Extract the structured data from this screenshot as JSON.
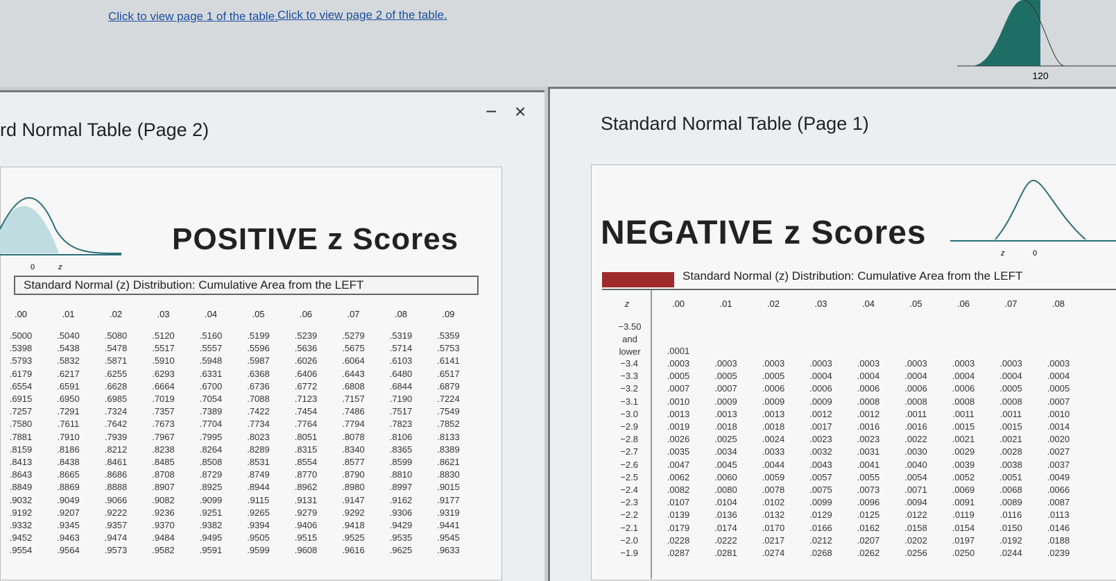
{
  "links": [
    "Click to view page 1 of the table.",
    "Click to view page 2 of the table."
  ],
  "background_label": "120",
  "page2": {
    "title": "rd Normal Table (Page 2)",
    "heading": "POSITIVE z Scores",
    "axis_labels": [
      "0",
      "z"
    ],
    "table": {
      "caption": "Standard Normal (z) Distribution: Cumulative Area from the LEFT",
      "columns": [
        ".00",
        ".01",
        ".02",
        ".03",
        ".04",
        ".05",
        ".06",
        ".07",
        ".08",
        ".09"
      ],
      "rows": [
        [
          ".5000",
          ".5040",
          ".5080",
          ".5120",
          ".5160",
          ".5199",
          ".5239",
          ".5279",
          ".5319",
          ".5359"
        ],
        [
          ".5398",
          ".5438",
          ".5478",
          ".5517",
          ".5557",
          ".5596",
          ".5636",
          ".5675",
          ".5714",
          ".5753"
        ],
        [
          ".5793",
          ".5832",
          ".5871",
          ".5910",
          ".5948",
          ".5987",
          ".6026",
          ".6064",
          ".6103",
          ".6141"
        ],
        [
          ".6179",
          ".6217",
          ".6255",
          ".6293",
          ".6331",
          ".6368",
          ".6406",
          ".6443",
          ".6480",
          ".6517"
        ],
        [
          ".6554",
          ".6591",
          ".6628",
          ".6664",
          ".6700",
          ".6736",
          ".6772",
          ".6808",
          ".6844",
          ".6879"
        ],
        [
          ".6915",
          ".6950",
          ".6985",
          ".7019",
          ".7054",
          ".7088",
          ".7123",
          ".7157",
          ".7190",
          ".7224"
        ],
        [
          ".7257",
          ".7291",
          ".7324",
          ".7357",
          ".7389",
          ".7422",
          ".7454",
          ".7486",
          ".7517",
          ".7549"
        ],
        [
          ".7580",
          ".7611",
          ".7642",
          ".7673",
          ".7704",
          ".7734",
          ".7764",
          ".7794",
          ".7823",
          ".7852"
        ],
        [
          ".7881",
          ".7910",
          ".7939",
          ".7967",
          ".7995",
          ".8023",
          ".8051",
          ".8078",
          ".8106",
          ".8133"
        ],
        [
          ".8159",
          ".8186",
          ".8212",
          ".8238",
          ".8264",
          ".8289",
          ".8315",
          ".8340",
          ".8365",
          ".8389"
        ],
        [
          ".8413",
          ".8438",
          ".8461",
          ".8485",
          ".8508",
          ".8531",
          ".8554",
          ".8577",
          ".8599",
          ".8621"
        ],
        [
          ".8643",
          ".8665",
          ".8686",
          ".8708",
          ".8729",
          ".8749",
          ".8770",
          ".8790",
          ".8810",
          ".8830"
        ],
        [
          ".8849",
          ".8869",
          ".8888",
          ".8907",
          ".8925",
          ".8944",
          ".8962",
          ".8980",
          ".8997",
          ".9015"
        ],
        [
          ".9032",
          ".9049",
          ".9066",
          ".9082",
          ".9099",
          ".9115",
          ".9131",
          ".9147",
          ".9162",
          ".9177"
        ],
        [
          ".9192",
          ".9207",
          ".9222",
          ".9236",
          ".9251",
          ".9265",
          ".9279",
          ".9292",
          ".9306",
          ".9319"
        ],
        [
          ".9332",
          ".9345",
          ".9357",
          ".9370",
          ".9382",
          ".9394",
          ".9406",
          ".9418",
          ".9429",
          ".9441"
        ],
        [
          ".9452",
          ".9463",
          ".9474",
          ".9484",
          ".9495",
          ".9505",
          ".9515",
          ".9525",
          ".9535",
          ".9545"
        ],
        [
          ".9554",
          ".9564",
          ".9573",
          ".9582",
          ".9591",
          ".9599",
          ".9608",
          ".9616",
          ".9625",
          ".9633"
        ]
      ]
    }
  },
  "page1": {
    "title": "Standard Normal Table (Page 1)",
    "heading": "NEGATIVE z Scores",
    "axis_labels": [
      "z",
      "0"
    ],
    "table": {
      "caption": "Standard Normal (z) Distribution: Cumulative Area from the LEFT",
      "z_header": "z",
      "columns": [
        ".00",
        ".01",
        ".02",
        ".03",
        ".04",
        ".05",
        ".06",
        ".07",
        ".08"
      ],
      "rows": [
        {
          "z": "−3.50 and lower",
          "values": [
            ".0001"
          ]
        },
        {
          "z": "−3.4",
          "values": [
            ".0003",
            ".0003",
            ".0003",
            ".0003",
            ".0003",
            ".0003",
            ".0003",
            ".0003",
            ".0003"
          ]
        },
        {
          "z": "−3.3",
          "values": [
            ".0005",
            ".0005",
            ".0005",
            ".0004",
            ".0004",
            ".0004",
            ".0004",
            ".0004",
            ".0004"
          ]
        },
        {
          "z": "−3.2",
          "values": [
            ".0007",
            ".0007",
            ".0006",
            ".0006",
            ".0006",
            ".0006",
            ".0006",
            ".0005",
            ".0005"
          ]
        },
        {
          "z": "−3.1",
          "values": [
            ".0010",
            ".0009",
            ".0009",
            ".0009",
            ".0008",
            ".0008",
            ".0008",
            ".0008",
            ".0007"
          ]
        },
        {
          "z": "−3.0",
          "values": [
            ".0013",
            ".0013",
            ".0013",
            ".0012",
            ".0012",
            ".0011",
            ".0011",
            ".0011",
            ".0010"
          ]
        },
        {
          "z": "−2.9",
          "values": [
            ".0019",
            ".0018",
            ".0018",
            ".0017",
            ".0016",
            ".0016",
            ".0015",
            ".0015",
            ".0014"
          ]
        },
        {
          "z": "−2.8",
          "values": [
            ".0026",
            ".0025",
            ".0024",
            ".0023",
            ".0023",
            ".0022",
            ".0021",
            ".0021",
            ".0020"
          ]
        },
        {
          "z": "−2.7",
          "values": [
            ".0035",
            ".0034",
            ".0033",
            ".0032",
            ".0031",
            ".0030",
            ".0029",
            ".0028",
            ".0027"
          ]
        },
        {
          "z": "−2.6",
          "values": [
            ".0047",
            ".0045",
            ".0044",
            ".0043",
            ".0041",
            ".0040",
            ".0039",
            ".0038",
            ".0037"
          ]
        },
        {
          "z": "−2.5",
          "values": [
            ".0062",
            ".0060",
            ".0059",
            ".0057",
            ".0055",
            ".0054",
            ".0052",
            ".0051",
            ".0049"
          ]
        },
        {
          "z": "−2.4",
          "values": [
            ".0082",
            ".0080",
            ".0078",
            ".0075",
            ".0073",
            ".0071",
            ".0069",
            ".0068",
            ".0066"
          ]
        },
        {
          "z": "−2.3",
          "values": [
            ".0107",
            ".0104",
            ".0102",
            ".0099",
            ".0096",
            ".0094",
            ".0091",
            ".0089",
            ".0087"
          ]
        },
        {
          "z": "−2.2",
          "values": [
            ".0139",
            ".0136",
            ".0132",
            ".0129",
            ".0125",
            ".0122",
            ".0119",
            ".0116",
            ".0113"
          ]
        },
        {
          "z": "−2.1",
          "values": [
            ".0179",
            ".0174",
            ".0170",
            ".0166",
            ".0162",
            ".0158",
            ".0154",
            ".0150",
            ".0146"
          ]
        },
        {
          "z": "−2.0",
          "values": [
            ".0228",
            ".0222",
            ".0217",
            ".0212",
            ".0207",
            ".0202",
            ".0197",
            ".0192",
            ".0188"
          ]
        },
        {
          "z": "−1.9",
          "values": [
            ".0287",
            ".0281",
            ".0274",
            ".0268",
            ".0262",
            ".0256",
            ".0250",
            ".0244",
            ".0239"
          ]
        }
      ]
    }
  }
}
